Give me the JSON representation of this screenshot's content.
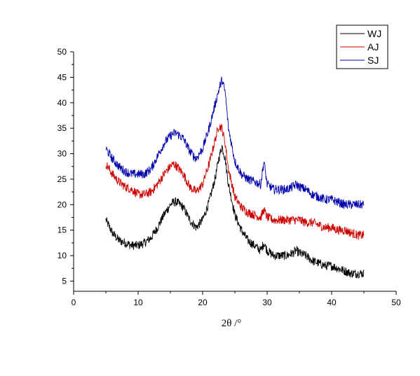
{
  "chart_data": {
    "type": "line",
    "xlabel": "2θ  /°",
    "ylabel": "",
    "xlim": [
      0,
      50
    ],
    "ylim": [
      3,
      50
    ],
    "xticks": [
      0,
      10,
      20,
      30,
      40,
      50
    ],
    "yticks": [
      5,
      10,
      15,
      20,
      25,
      30,
      35,
      40,
      45,
      50
    ],
    "grid": false,
    "legend_position": "top-right",
    "series": [
      {
        "name": "WJ",
        "color": "#000000",
        "x": [
          5,
          6,
          7,
          8,
          9,
          10,
          11,
          12,
          13,
          14,
          15,
          15.5,
          16,
          17,
          18,
          19,
          20,
          21,
          22,
          22.5,
          23,
          23.5,
          24,
          25,
          26,
          27,
          28,
          29,
          29.5,
          30,
          31,
          32,
          33,
          34,
          34.5,
          35,
          36,
          37,
          38,
          39,
          40,
          41,
          42,
          43,
          44,
          45
        ],
        "values": [
          17,
          14.5,
          13,
          12.5,
          12,
          12,
          12.5,
          13.5,
          15.5,
          18,
          20,
          20.5,
          20.5,
          19.5,
          17,
          15.5,
          17,
          20.5,
          25.5,
          29,
          31.5,
          29,
          24,
          18,
          15,
          13,
          12,
          11,
          12.5,
          11,
          10,
          10,
          10,
          10.5,
          11,
          10.5,
          10,
          9,
          8.5,
          8,
          8,
          7.5,
          7,
          6.5,
          6.5,
          6.5
        ]
      },
      {
        "name": "AJ",
        "color": "#cc0000",
        "x": [
          5,
          6,
          7,
          8,
          9,
          10,
          11,
          12,
          13,
          14,
          15,
          15.5,
          16,
          17,
          18,
          19,
          20,
          21,
          22,
          22.5,
          23,
          23.5,
          24,
          25,
          26,
          27,
          28,
          29,
          29.5,
          30,
          31,
          32,
          33,
          34,
          35,
          36,
          37,
          38,
          39,
          40,
          41,
          42,
          43,
          44,
          45
        ],
        "values": [
          28,
          26,
          24.5,
          23.5,
          23,
          22,
          22,
          22.5,
          24,
          26,
          27.5,
          28,
          27.5,
          26,
          23.5,
          22.5,
          24,
          28,
          33,
          35.5,
          35,
          32,
          27,
          21.5,
          19.5,
          18.5,
          18,
          17.5,
          19,
          17.5,
          17,
          17,
          17,
          17,
          17,
          16.5,
          16.5,
          16,
          15.5,
          15.5,
          15,
          15,
          14.5,
          14,
          14
        ]
      },
      {
        "name": "SJ",
        "color": "#0000aa",
        "x": [
          5,
          6,
          7,
          8,
          9,
          10,
          11,
          12,
          13,
          14,
          15,
          15.5,
          16,
          17,
          18,
          19,
          20,
          21,
          22,
          22.5,
          23,
          23.5,
          24,
          25,
          26,
          27,
          28,
          29,
          29.5,
          30,
          31,
          32,
          33,
          34,
          34.5,
          35,
          36,
          37,
          38,
          39,
          40,
          41,
          42,
          43,
          44,
          45
        ],
        "values": [
          31,
          29,
          27.5,
          26.5,
          26,
          26,
          26,
          27,
          29.5,
          32,
          33.5,
          34,
          34,
          33,
          30.5,
          29,
          31,
          35,
          40,
          42.5,
          44.5,
          42,
          35,
          28.5,
          26,
          25,
          24.5,
          24,
          28.5,
          24,
          23,
          23,
          23,
          23.5,
          24,
          23.5,
          23,
          22,
          21.5,
          21,
          21,
          20.5,
          20,
          20,
          20,
          20
        ]
      }
    ]
  }
}
